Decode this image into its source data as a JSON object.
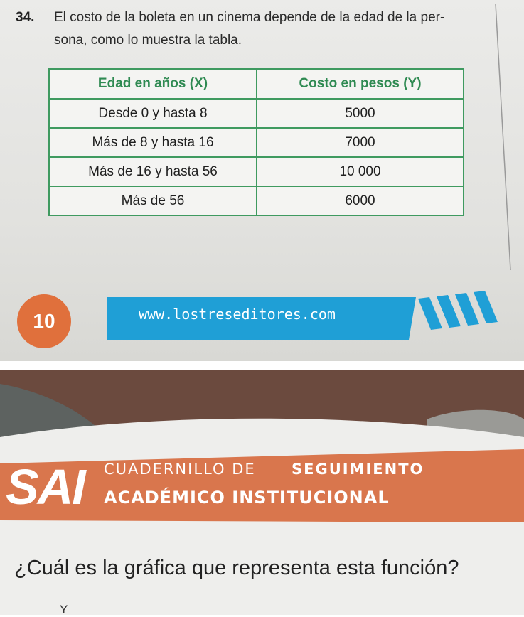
{
  "question": {
    "number": "34.",
    "lines": [
      "El costo de la boleta en un cinema depende de la edad de la per-",
      "sona, como lo muestra la tabla."
    ]
  },
  "table": {
    "header": [
      "Edad en años (X)",
      "Costo en pesos (Y)"
    ],
    "rows": [
      [
        "Desde 0 y hasta 8",
        "5000"
      ],
      [
        "Más de 8 y hasta 16",
        "7000"
      ],
      [
        "Más de 16 y hasta 56",
        "10 000"
      ],
      [
        "Más de 56",
        "6000"
      ]
    ]
  },
  "footer": {
    "page_number": "10",
    "url": "www.lostreseditores.com"
  },
  "banner": {
    "logo": "SAI",
    "line1_light": "CUADERNILLO DE",
    "line1_bold": "SEGUIMIENTO",
    "line2": "ACADÉMICO INSTITUCIONAL"
  },
  "question2": {
    "text": "¿Cuál es la gráfica que representa esta función?",
    "axis_label": "Y"
  }
}
